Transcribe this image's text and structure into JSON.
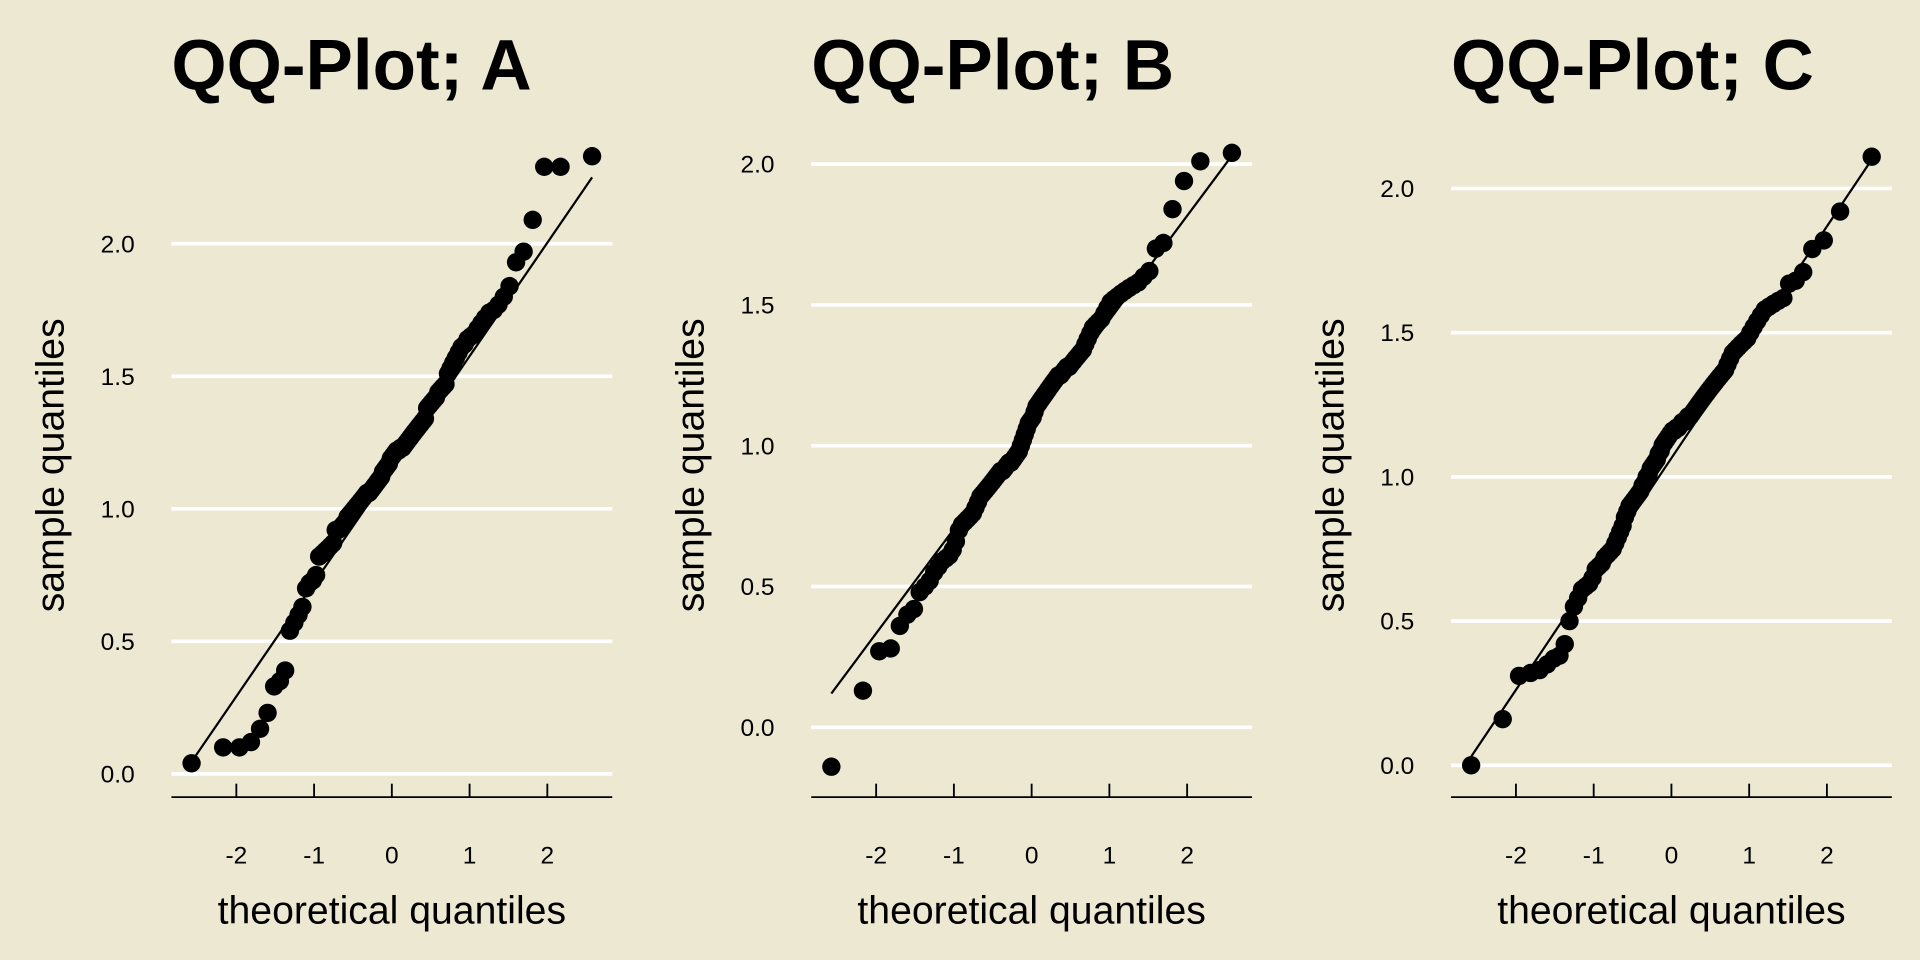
{
  "colors": {
    "background": "#ece8d2",
    "grid": "#ffffff",
    "points": "#000000",
    "line": "#000000"
  },
  "chart_data": [
    {
      "type": "scatter",
      "title": "QQ-Plot; A",
      "xlabel": "theoretical quantiles",
      "ylabel": "sample quantiles",
      "xticks": [
        "-2",
        "-1",
        "0",
        "1",
        "2"
      ],
      "xtick_values": [
        -2,
        -1,
        0,
        1,
        2
      ],
      "yticks": [
        "0.0",
        "0.5",
        "1.0",
        "1.5",
        "2.0"
      ],
      "ytick_values": [
        0,
        0.5,
        1,
        1.5,
        2
      ],
      "xlim": [
        -2.835,
        2.835
      ],
      "ylim": [
        -0.06,
        2.365
      ],
      "grid": "horizontal",
      "reference_line": [
        [
          -2.576,
          0.046
        ],
        [
          2.576,
          2.25
        ]
      ],
      "y": [
        0.04,
        0.1,
        0.1,
        0.12,
        0.17,
        0.23,
        0.33,
        0.35,
        0.39,
        0.54,
        0.57,
        0.6,
        0.63,
        0.7,
        0.72,
        0.73,
        0.75,
        0.82,
        0.83,
        0.84,
        0.85,
        0.86,
        0.87,
        0.92,
        0.92,
        0.93,
        0.94,
        0.95,
        0.97,
        0.98,
        0.99,
        1.0,
        1.01,
        1.02,
        1.03,
        1.04,
        1.05,
        1.06,
        1.06,
        1.07,
        1.08,
        1.09,
        1.1,
        1.11,
        1.12,
        1.14,
        1.15,
        1.16,
        1.17,
        1.19,
        1.2,
        1.21,
        1.22,
        1.22,
        1.23,
        1.23,
        1.24,
        1.25,
        1.26,
        1.27,
        1.28,
        1.29,
        1.3,
        1.31,
        1.32,
        1.33,
        1.34,
        1.38,
        1.39,
        1.4,
        1.41,
        1.42,
        1.44,
        1.45,
        1.46,
        1.47,
        1.51,
        1.53,
        1.55,
        1.57,
        1.59,
        1.61,
        1.62,
        1.64,
        1.65,
        1.66,
        1.68,
        1.7,
        1.72,
        1.74,
        1.75,
        1.77,
        1.8,
        1.84,
        1.93,
        1.97,
        2.09,
        2.29,
        2.29,
        2.33
      ]
    },
    {
      "type": "scatter",
      "title": "QQ-Plot; B",
      "xlabel": "theoretical quantiles",
      "ylabel": "sample quantiles",
      "xticks": [
        "-2",
        "-1",
        "0",
        "1",
        "2"
      ],
      "xtick_values": [
        -2,
        -1,
        0,
        1,
        2
      ],
      "yticks": [
        "0.0",
        "0.5",
        "1.0",
        "1.5",
        "2.0"
      ],
      "ytick_values": [
        0,
        0.5,
        1,
        1.5,
        2
      ],
      "xlim": [
        -2.835,
        2.835
      ],
      "ylim": [
        -0.222,
        2.061
      ],
      "grid": "horizontal",
      "reference_line": [
        [
          -2.576,
          0.12
        ],
        [
          2.576,
          2.03
        ]
      ],
      "y": [
        -0.14,
        0.13,
        0.27,
        0.28,
        0.36,
        0.4,
        0.42,
        0.48,
        0.5,
        0.52,
        0.55,
        0.57,
        0.59,
        0.6,
        0.61,
        0.63,
        0.66,
        0.7,
        0.72,
        0.73,
        0.74,
        0.75,
        0.76,
        0.78,
        0.8,
        0.82,
        0.83,
        0.84,
        0.85,
        0.86,
        0.87,
        0.88,
        0.89,
        0.9,
        0.91,
        0.91,
        0.92,
        0.93,
        0.94,
        0.94,
        0.95,
        0.96,
        0.97,
        0.98,
        1.0,
        1.02,
        1.04,
        1.06,
        1.08,
        1.09,
        1.1,
        1.12,
        1.14,
        1.15,
        1.16,
        1.17,
        1.18,
        1.19,
        1.2,
        1.21,
        1.22,
        1.23,
        1.24,
        1.25,
        1.25,
        1.26,
        1.27,
        1.28,
        1.28,
        1.29,
        1.3,
        1.31,
        1.32,
        1.33,
        1.34,
        1.36,
        1.38,
        1.4,
        1.42,
        1.43,
        1.44,
        1.45,
        1.47,
        1.49,
        1.51,
        1.52,
        1.53,
        1.54,
        1.55,
        1.56,
        1.57,
        1.58,
        1.6,
        1.62,
        1.7,
        1.72,
        1.84,
        1.94,
        2.01,
        2.04
      ]
    },
    {
      "type": "scatter",
      "title": "QQ-Plot; C",
      "xlabel": "theoretical quantiles",
      "ylabel": "sample quantiles",
      "xticks": [
        "-2",
        "-1",
        "0",
        "1",
        "2"
      ],
      "xtick_values": [
        -2,
        -1,
        0,
        1,
        2
      ],
      "yticks": [
        "0.0",
        "0.5",
        "1.0",
        "1.5",
        "2.0"
      ],
      "ytick_values": [
        0,
        0.5,
        1,
        1.5,
        2
      ],
      "xlim": [
        -2.835,
        2.835
      ],
      "ylim": [
        -0.085,
        2.144
      ],
      "grid": "horizontal",
      "reference_line": [
        [
          -2.576,
          0.03
        ],
        [
          2.576,
          2.1
        ]
      ],
      "y": [
        0.0,
        0.16,
        0.31,
        0.32,
        0.33,
        0.35,
        0.37,
        0.38,
        0.42,
        0.5,
        0.55,
        0.58,
        0.61,
        0.62,
        0.63,
        0.65,
        0.68,
        0.69,
        0.7,
        0.72,
        0.73,
        0.74,
        0.75,
        0.77,
        0.79,
        0.81,
        0.83,
        0.86,
        0.88,
        0.9,
        0.91,
        0.92,
        0.93,
        0.94,
        0.95,
        0.97,
        0.98,
        1.0,
        1.01,
        1.03,
        1.04,
        1.05,
        1.06,
        1.08,
        1.09,
        1.11,
        1.12,
        1.13,
        1.14,
        1.15,
        1.16,
        1.16,
        1.17,
        1.17,
        1.18,
        1.19,
        1.19,
        1.2,
        1.21,
        1.21,
        1.22,
        1.23,
        1.24,
        1.25,
        1.26,
        1.27,
        1.28,
        1.29,
        1.3,
        1.31,
        1.32,
        1.33,
        1.34,
        1.35,
        1.36,
        1.37,
        1.39,
        1.41,
        1.43,
        1.44,
        1.45,
        1.46,
        1.47,
        1.48,
        1.5,
        1.52,
        1.54,
        1.56,
        1.58,
        1.59,
        1.6,
        1.61,
        1.62,
        1.67,
        1.68,
        1.71,
        1.79,
        1.82,
        1.92,
        2.11
      ]
    }
  ],
  "theoretical_quantiles": [
    -2.576,
    -2.17,
    -1.96,
    -1.812,
    -1.695,
    -1.598,
    -1.514,
    -1.44,
    -1.372,
    -1.311,
    -1.254,
    -1.2,
    -1.15,
    -1.103,
    -1.058,
    -1.015,
    -0.974,
    -0.935,
    -0.896,
    -0.86,
    -0.824,
    -0.789,
    -0.755,
    -0.722,
    -0.69,
    -0.659,
    -0.628,
    -0.598,
    -0.568,
    -0.539,
    -0.51,
    -0.482,
    -0.454,
    -0.426,
    -0.399,
    -0.372,
    -0.345,
    -0.319,
    -0.292,
    -0.266,
    -0.24,
    -0.215,
    -0.189,
    -0.164,
    -0.138,
    -0.113,
    -0.088,
    -0.063,
    -0.038,
    -0.013,
    0.013,
    0.038,
    0.063,
    0.088,
    0.113,
    0.138,
    0.164,
    0.189,
    0.215,
    0.24,
    0.266,
    0.292,
    0.319,
    0.345,
    0.372,
    0.399,
    0.426,
    0.454,
    0.482,
    0.51,
    0.539,
    0.568,
    0.598,
    0.628,
    0.659,
    0.69,
    0.722,
    0.755,
    0.789,
    0.824,
    0.86,
    0.896,
    0.935,
    0.974,
    1.015,
    1.058,
    1.103,
    1.15,
    1.2,
    1.254,
    1.311,
    1.372,
    1.44,
    1.514,
    1.598,
    1.695,
    1.812,
    1.96,
    2.17,
    2.576
  ]
}
